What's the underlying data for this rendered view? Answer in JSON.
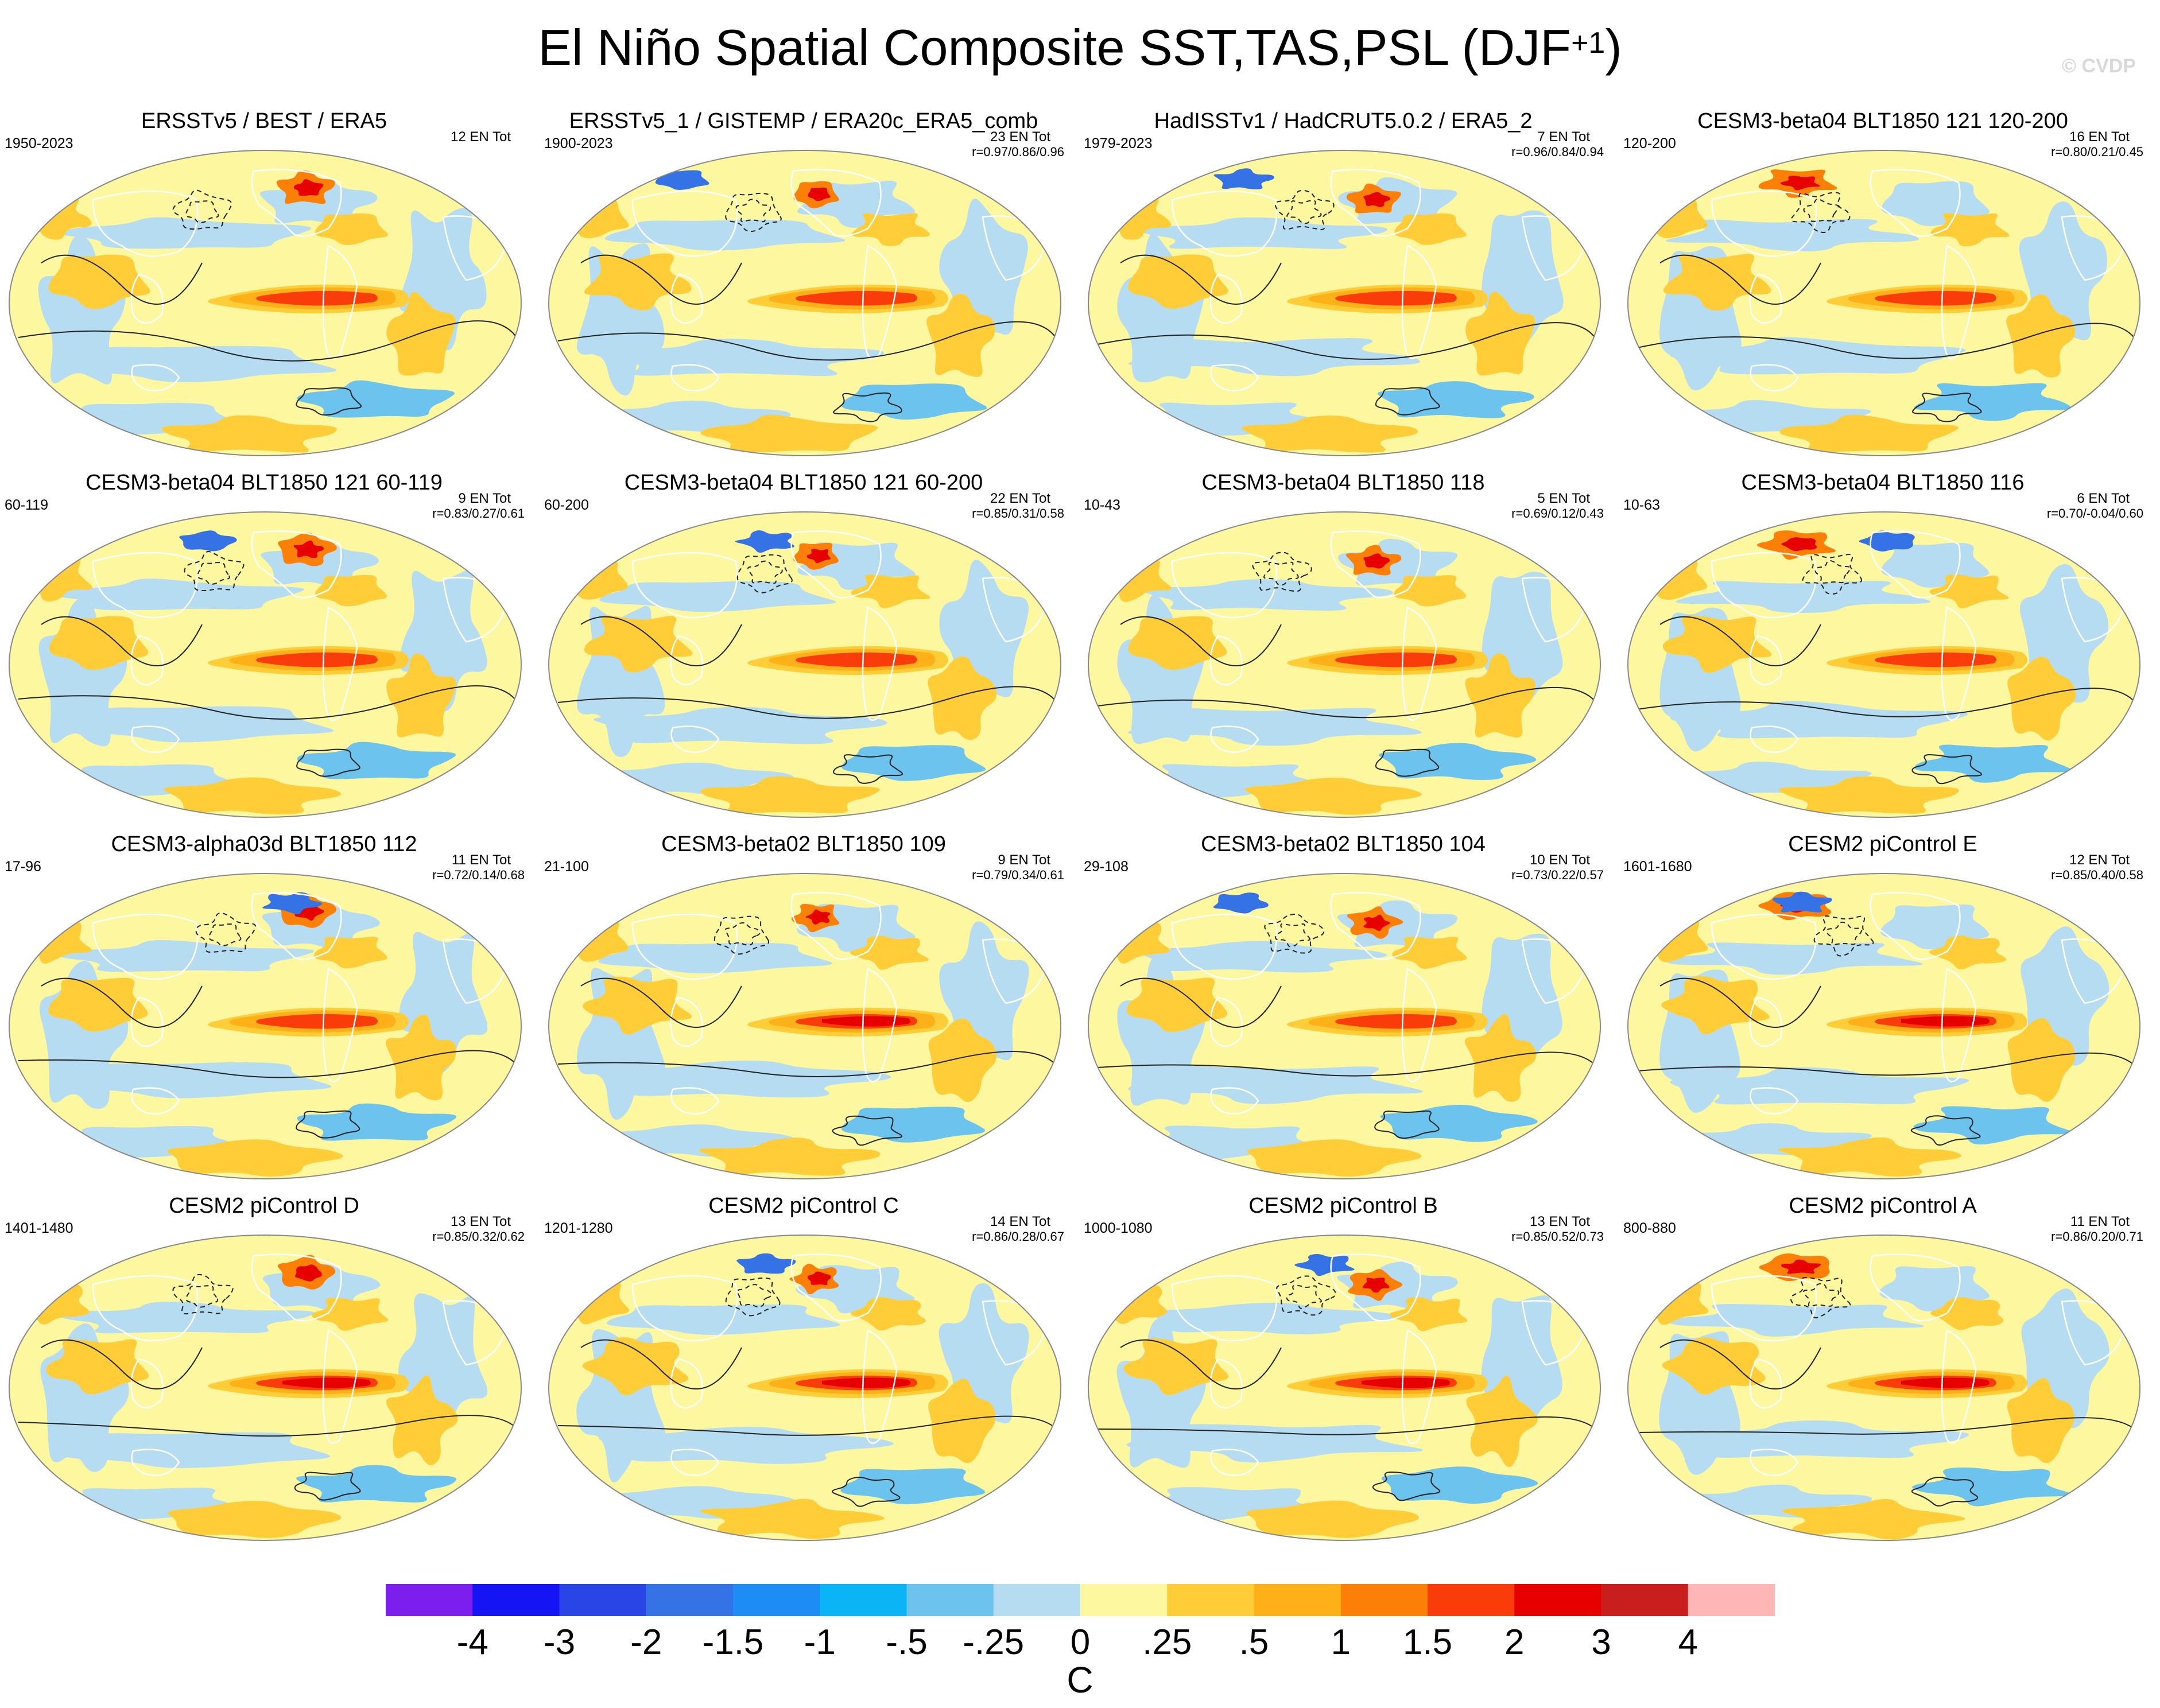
{
  "figure": {
    "title_main": "El Niño Spatial Composite SST,TAS,PSL (DJF",
    "title_sup": "+1",
    "title_end": ")",
    "watermark": "© CVDP"
  },
  "panels": [
    {
      "title": "ERSSTv5 / BEST / ERA5",
      "years": "1950-2023",
      "en_count": "12 EN Tot",
      "corr": "",
      "variant": 0
    },
    {
      "title": "ERSSTv5_1 / GISTEMP / ERA20c_ERA5_comb",
      "years": "1900-2023",
      "en_count": "23 EN Tot",
      "corr": "r=0.97/0.86/0.96",
      "variant": 1
    },
    {
      "title": "HadISSTv1 / HadCRUT5.0.2 / ERA5_2",
      "years": "1979-2023",
      "en_count": "7 EN Tot",
      "corr": "r=0.96/0.84/0.94",
      "variant": 2
    },
    {
      "title": "CESM3-beta04 BLT1850 121 120-200",
      "years": "120-200",
      "en_count": "16 EN Tot",
      "corr": "r=0.80/0.21/0.45",
      "variant": 3
    },
    {
      "title": "CESM3-beta04 BLT1850 121 60-119",
      "years": "60-119",
      "en_count": "9 EN Tot",
      "corr": "r=0.83/0.27/0.61",
      "variant": 4
    },
    {
      "title": "CESM3-beta04 BLT1850 121 60-200",
      "years": "60-200",
      "en_count": "22 EN Tot",
      "corr": "r=0.85/0.31/0.58",
      "variant": 5
    },
    {
      "title": "CESM3-beta04 BLT1850 118",
      "years": "10-43",
      "en_count": "5 EN Tot",
      "corr": "r=0.69/0.12/0.43",
      "variant": 6
    },
    {
      "title": "CESM3-beta04 BLT1850 116",
      "years": "10-63",
      "en_count": "6 EN Tot",
      "corr": "r=0.70/-0.04/0.60",
      "variant": 7
    },
    {
      "title": "CESM3-alpha03d BLT1850 112",
      "years": "17-96",
      "en_count": "11 EN Tot",
      "corr": "r=0.72/0.14/0.68",
      "variant": 8
    },
    {
      "title": "CESM3-beta02 BLT1850 109",
      "years": "21-100",
      "en_count": "9 EN Tot",
      "corr": "r=0.79/0.34/0.61",
      "variant": 9
    },
    {
      "title": "CESM3-beta02 BLT1850 104",
      "years": "29-108",
      "en_count": "10 EN Tot",
      "corr": "r=0.73/0.22/0.57",
      "variant": 10
    },
    {
      "title": "CESM2 piControl E",
      "years": "1601-1680",
      "en_count": "12 EN Tot",
      "corr": "r=0.85/0.40/0.58",
      "variant": 11
    },
    {
      "title": "CESM2 piControl D",
      "years": "1401-1480",
      "en_count": "13 EN Tot",
      "corr": "r=0.85/0.32/0.62",
      "variant": 12
    },
    {
      "title": "CESM2 piControl C",
      "years": "1201-1280",
      "en_count": "14 EN Tot",
      "corr": "r=0.86/0.28/0.67",
      "variant": 13
    },
    {
      "title": "CESM2 piControl B",
      "years": "1000-1080",
      "en_count": "13 EN Tot",
      "corr": "r=0.85/0.52/0.73",
      "variant": 14
    },
    {
      "title": "CESM2 piControl A",
      "years": "800-880",
      "en_count": "11 EN Tot",
      "corr": "r=0.86/0.20/0.71",
      "variant": 15
    }
  ],
  "colorbar": {
    "colors": [
      "#7c1eed",
      "#1414f5",
      "#2a45e6",
      "#3572e6",
      "#1e8cf5",
      "#0ab4f5",
      "#6cc3ee",
      "#b6dcf2",
      "#fdf7a0",
      "#fecd37",
      "#fdb018",
      "#fc8008",
      "#fa3c0a",
      "#e60000",
      "#c81e1e",
      "#ffb6b6"
    ],
    "labels": [
      "-4",
      "-3",
      "-2",
      "-1.5",
      "-1",
      "-.5",
      "-.25",
      "0",
      ".25",
      ".5",
      "1",
      "1.5",
      "2",
      "3",
      "4"
    ],
    "units": "C"
  }
}
